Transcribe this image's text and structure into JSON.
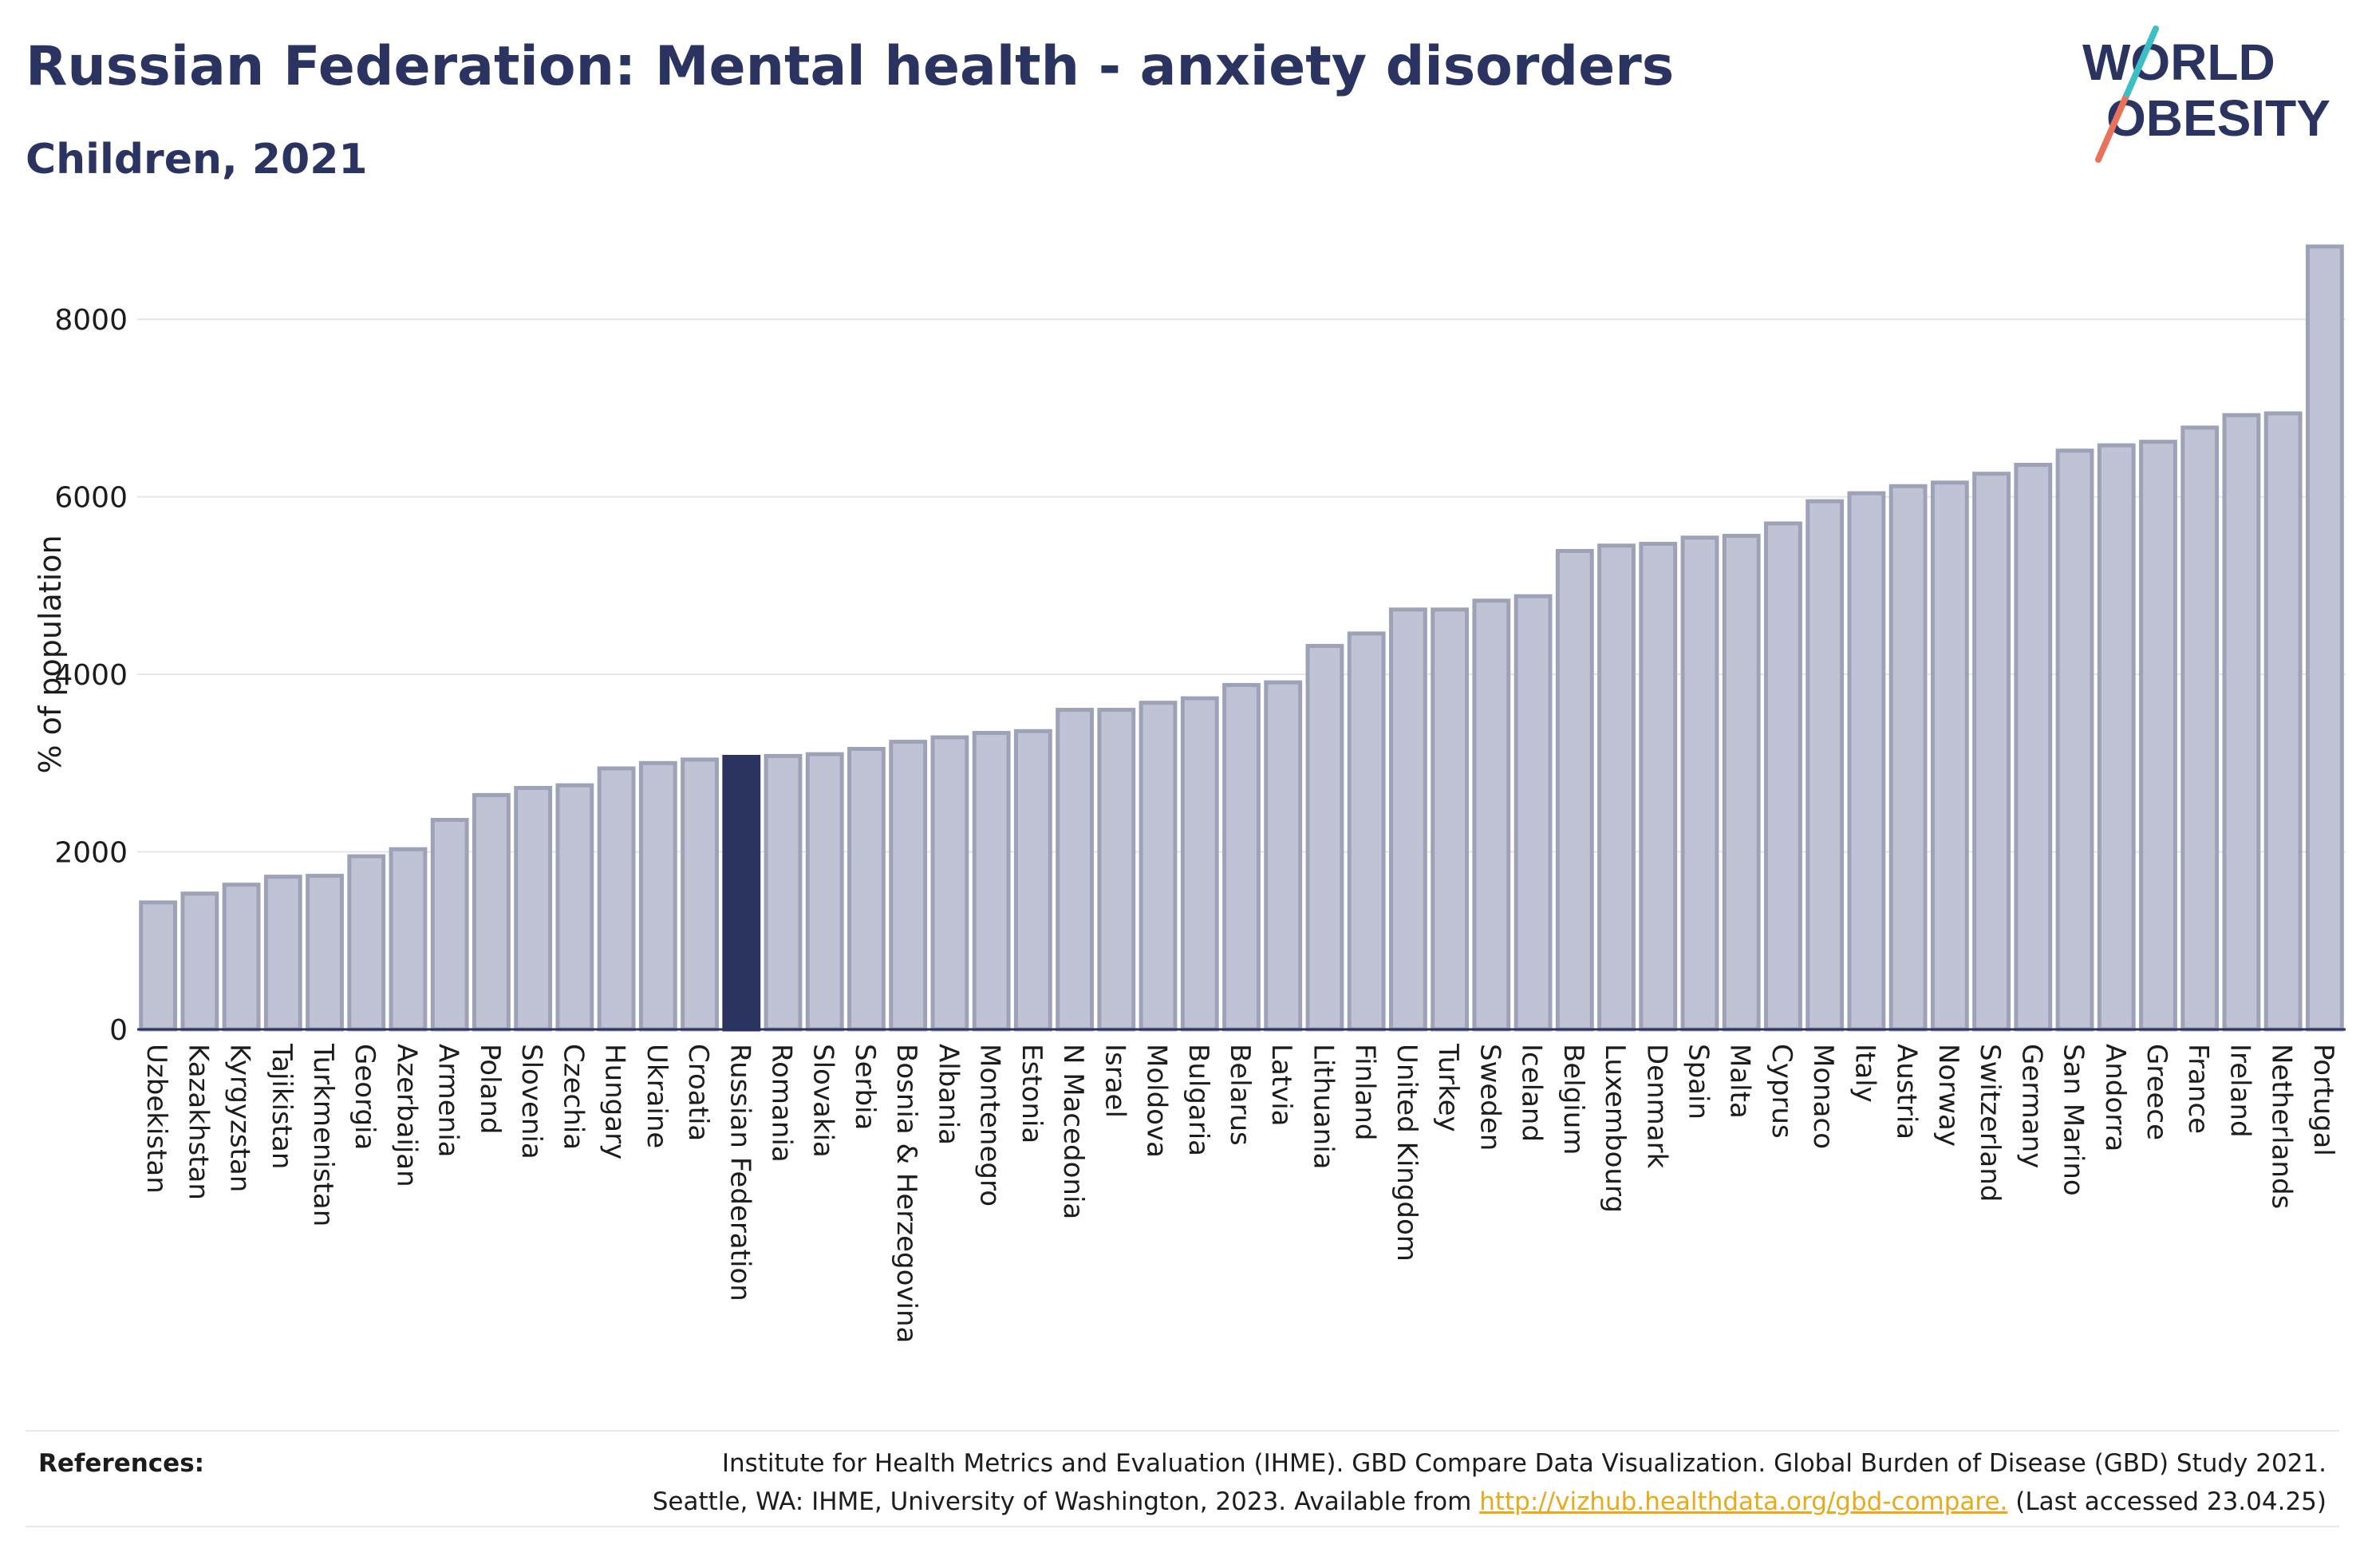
{
  "header": {
    "title": "Russian Federation: Mental health - anxiety disorders",
    "subtitle": "Children, 2021"
  },
  "logo": {
    "line1": "WORLD",
    "line2": "OBESITY"
  },
  "chart_data": {
    "type": "bar",
    "title": "Russian Federation: Mental health - anxiety disorders",
    "subtitle": "Children, 2021",
    "ylabel": "% of population",
    "xlabel": "",
    "ylim": [
      0,
      8900
    ],
    "yticks": [
      0,
      2000,
      4000,
      6000,
      8000
    ],
    "grid": true,
    "highlight": "Russian Federation",
    "colors": {
      "bar": "#c0c3d3",
      "bar_edge": "#9ea2b8",
      "highlight": "#2b3461",
      "grid": "#e6e6ea",
      "axis": "#2b3461"
    },
    "categories": [
      "Uzbekistan",
      "Kazakhstan",
      "Kyrgyzstan",
      "Tajikistan",
      "Turkmenistan",
      "Georgia",
      "Azerbaijan",
      "Armenia",
      "Poland",
      "Slovenia",
      "Czechia",
      "Hungary",
      "Ukraine",
      "Croatia",
      "Russian Federation",
      "Romania",
      "Slovakia",
      "Serbia",
      "Bosnia & Herzegovina",
      "Albania",
      "Montenegro",
      "Estonia",
      "N Macedonia",
      "Israel",
      "Moldova",
      "Bulgaria",
      "Belarus",
      "Latvia",
      "Lithuania",
      "Finland",
      "United Kingdom",
      "Turkey",
      "Sweden",
      "Iceland",
      "Belgium",
      "Luxembourg",
      "Denmark",
      "Spain",
      "Malta",
      "Cyprus",
      "Monaco",
      "Italy",
      "Austria",
      "Norway",
      "Switzerland",
      "Germany",
      "San Marino",
      "Andorra",
      "Greece",
      "France",
      "Ireland",
      "Netherlands",
      "Portugal"
    ],
    "values": [
      1430,
      1530,
      1630,
      1720,
      1730,
      1950,
      2030,
      2360,
      2640,
      2720,
      2750,
      2940,
      3000,
      3040,
      3070,
      3080,
      3100,
      3160,
      3240,
      3290,
      3340,
      3360,
      3600,
      3600,
      3680,
      3730,
      3880,
      3910,
      4320,
      4460,
      4730,
      4730,
      4830,
      4880,
      5390,
      5450,
      5470,
      5540,
      5560,
      5700,
      5950,
      6040,
      6120,
      6160,
      6260,
      6360,
      6520,
      6580,
      6620,
      6780,
      6920,
      6940,
      8820
    ]
  },
  "references": {
    "label": "References:",
    "line1": "Institute for Health Metrics and Evaluation (IHME). GBD Compare Data Visualization. Global Burden of Disease (GBD) Study 2021.",
    "line2_prefix": "Seattle, WA: IHME, University of Washington, 2023. Available from ",
    "link": "http://vizhub.healthdata.org/gbd-compare.",
    "line2_suffix": " (Last accessed 23.04.25)"
  }
}
